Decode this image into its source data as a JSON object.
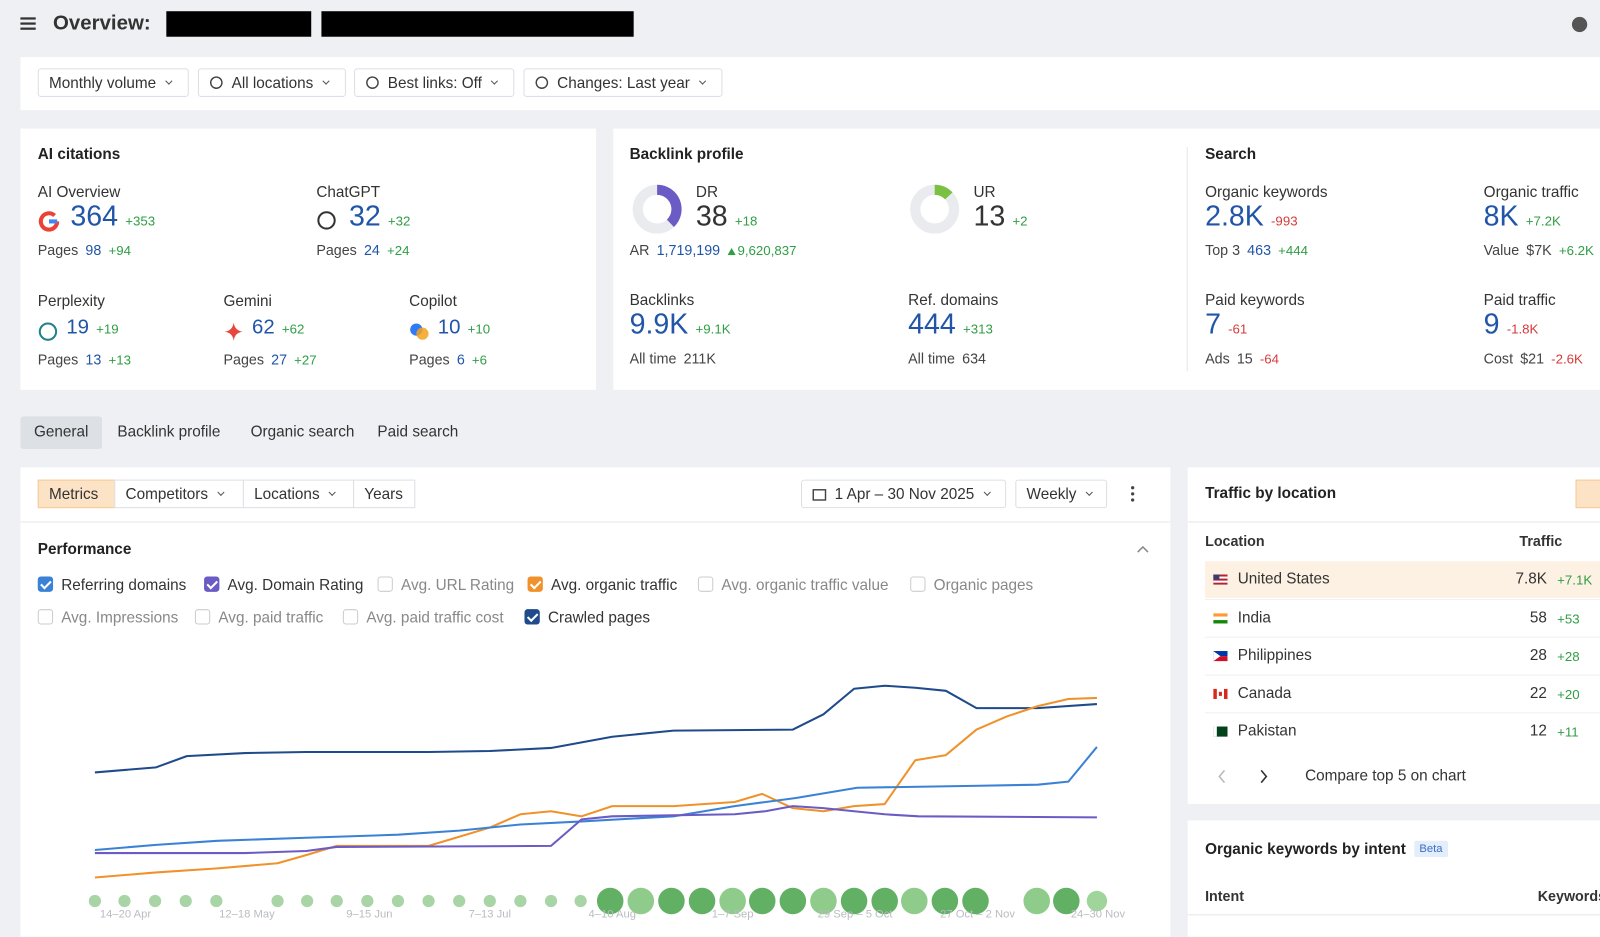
{
  "header": {
    "title": "Overview:"
  },
  "filters": [
    "Monthly volume",
    "All locations",
    "Best links: Off",
    "Changes: Last year"
  ],
  "ai_citations": {
    "title": "AI citations",
    "items": [
      {
        "label": "AI Overview",
        "value": "364",
        "change": "+353",
        "sub_label": "Pages",
        "sub_value": "98",
        "sub_change": "+94"
      },
      {
        "label": "ChatGPT",
        "value": "32",
        "change": "+32",
        "sub_label": "Pages",
        "sub_value": "24",
        "sub_change": "+24"
      },
      {
        "label": "Perplexity",
        "value": "19",
        "change": "+19",
        "sub_label": "Pages",
        "sub_value": "13",
        "sub_change": "+13"
      },
      {
        "label": "Gemini",
        "value": "62",
        "change": "+62",
        "sub_label": "Pages",
        "sub_value": "27",
        "sub_change": "+27"
      },
      {
        "label": "Copilot",
        "value": "10",
        "change": "+10",
        "sub_label": "Pages",
        "sub_value": "6",
        "sub_change": "+6"
      }
    ]
  },
  "backlink_profile": {
    "title": "Backlink profile",
    "items": [
      {
        "label": "DR",
        "value": "38",
        "change": "+18",
        "sub_label": "AR",
        "sub_value": "1,719,199",
        "sub_change": "9,620,837"
      },
      {
        "label": "UR",
        "value": "13",
        "change": "+2"
      },
      {
        "label": "Backlinks",
        "value": "9.9K",
        "change": "+9.1K",
        "sub_label": "All time",
        "sub_value": "211K"
      },
      {
        "label": "Ref. domains",
        "value": "444",
        "change": "+313",
        "sub_label": "All time",
        "sub_value": "634"
      }
    ]
  },
  "search": {
    "title": "Search",
    "items": [
      {
        "label": "Organic keywords",
        "value": "2.8K",
        "change": "-993",
        "sub_label": "Top 3",
        "sub_value": "463",
        "sub_change": "+444"
      },
      {
        "label": "Organic traffic",
        "value": "8K",
        "change": "+7.2K",
        "sub_label": "Value",
        "sub_value": "$7K",
        "sub_change": "+6.2K"
      },
      {
        "label": "Paid keywords",
        "value": "7",
        "change": "-61",
        "sub_label": "Ads",
        "sub_value": "15",
        "sub_change": "-64"
      },
      {
        "label": "Paid traffic",
        "value": "9",
        "change": "-1.8K",
        "sub_label": "Cost",
        "sub_value": "$21",
        "sub_change": "-2.6K"
      }
    ]
  },
  "tabs": [
    "General",
    "Backlink profile",
    "Organic search",
    "Paid search"
  ],
  "toolbar": {
    "buttons": [
      "Metrics",
      "Competitors",
      "Locations",
      "Years"
    ],
    "date_range": "1 Apr – 30 Nov 2025",
    "interval": "Weekly"
  },
  "performance": {
    "title": "Performance",
    "metrics": [
      {
        "name": "Referring domains",
        "checked": true,
        "color": "#3b82d6"
      },
      {
        "name": "Avg. Domain Rating",
        "checked": true,
        "color": "#6b5bc4"
      },
      {
        "name": "Avg. URL Rating",
        "checked": false
      },
      {
        "name": "Avg. organic traffic",
        "checked": true,
        "color": "#f0922b"
      },
      {
        "name": "Avg. organic traffic value",
        "checked": false
      },
      {
        "name": "Organic pages",
        "checked": false
      },
      {
        "name": "Avg. Impressions",
        "checked": false
      },
      {
        "name": "Avg. paid traffic",
        "checked": false
      },
      {
        "name": "Avg. paid traffic cost",
        "checked": false
      },
      {
        "name": "Crawled pages",
        "checked": true,
        "color": "#1f4a8c"
      }
    ],
    "x_labels": [
      "14–20 Apr",
      "12–18 May",
      "9–15 Jun",
      "7–13 Jul",
      "4–10 Aug",
      "1–7 Sep",
      "29 Sep – 5 Oct",
      "27 Oct – 2 Nov",
      "24–30 Nov"
    ]
  },
  "traffic_by_location": {
    "title": "Traffic by location",
    "columns": [
      "Location",
      "Traffic"
    ],
    "rows": [
      {
        "location": "United States",
        "traffic": "7.8K",
        "change": "+7.1K"
      },
      {
        "location": "India",
        "traffic": "58",
        "change": "+53"
      },
      {
        "location": "Philippines",
        "traffic": "28",
        "change": "+28"
      },
      {
        "location": "Canada",
        "traffic": "22",
        "change": "+20"
      },
      {
        "location": "Pakistan",
        "traffic": "12",
        "change": "+11"
      }
    ],
    "compare": "Compare top 5 on chart"
  },
  "keywords_by_intent": {
    "title": "Organic keywords by intent",
    "badge": "Beta",
    "columns": [
      "Intent",
      "Keywords"
    ]
  }
}
